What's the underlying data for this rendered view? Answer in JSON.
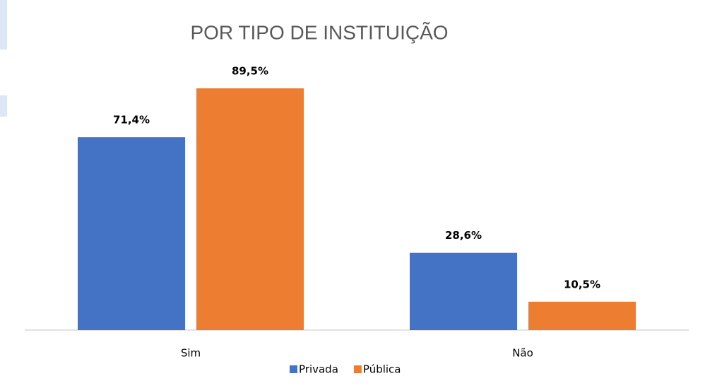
{
  "chart_data": {
    "type": "bar",
    "title": "POR TIPO DE INSTITUIÇÃO",
    "categories": [
      "Sim",
      "Não"
    ],
    "series": [
      {
        "name": "Privada",
        "color": "#4472c4",
        "values": [
          71.4,
          28.6
        ],
        "value_labels": [
          "71,4%",
          "28,6%"
        ]
      },
      {
        "name": "Pública",
        "color": "#ed7d31",
        "values": [
          89.5,
          10.5
        ],
        "value_labels": [
          "89,5%",
          "10,5%"
        ]
      }
    ],
    "legend": "bottom"
  }
}
